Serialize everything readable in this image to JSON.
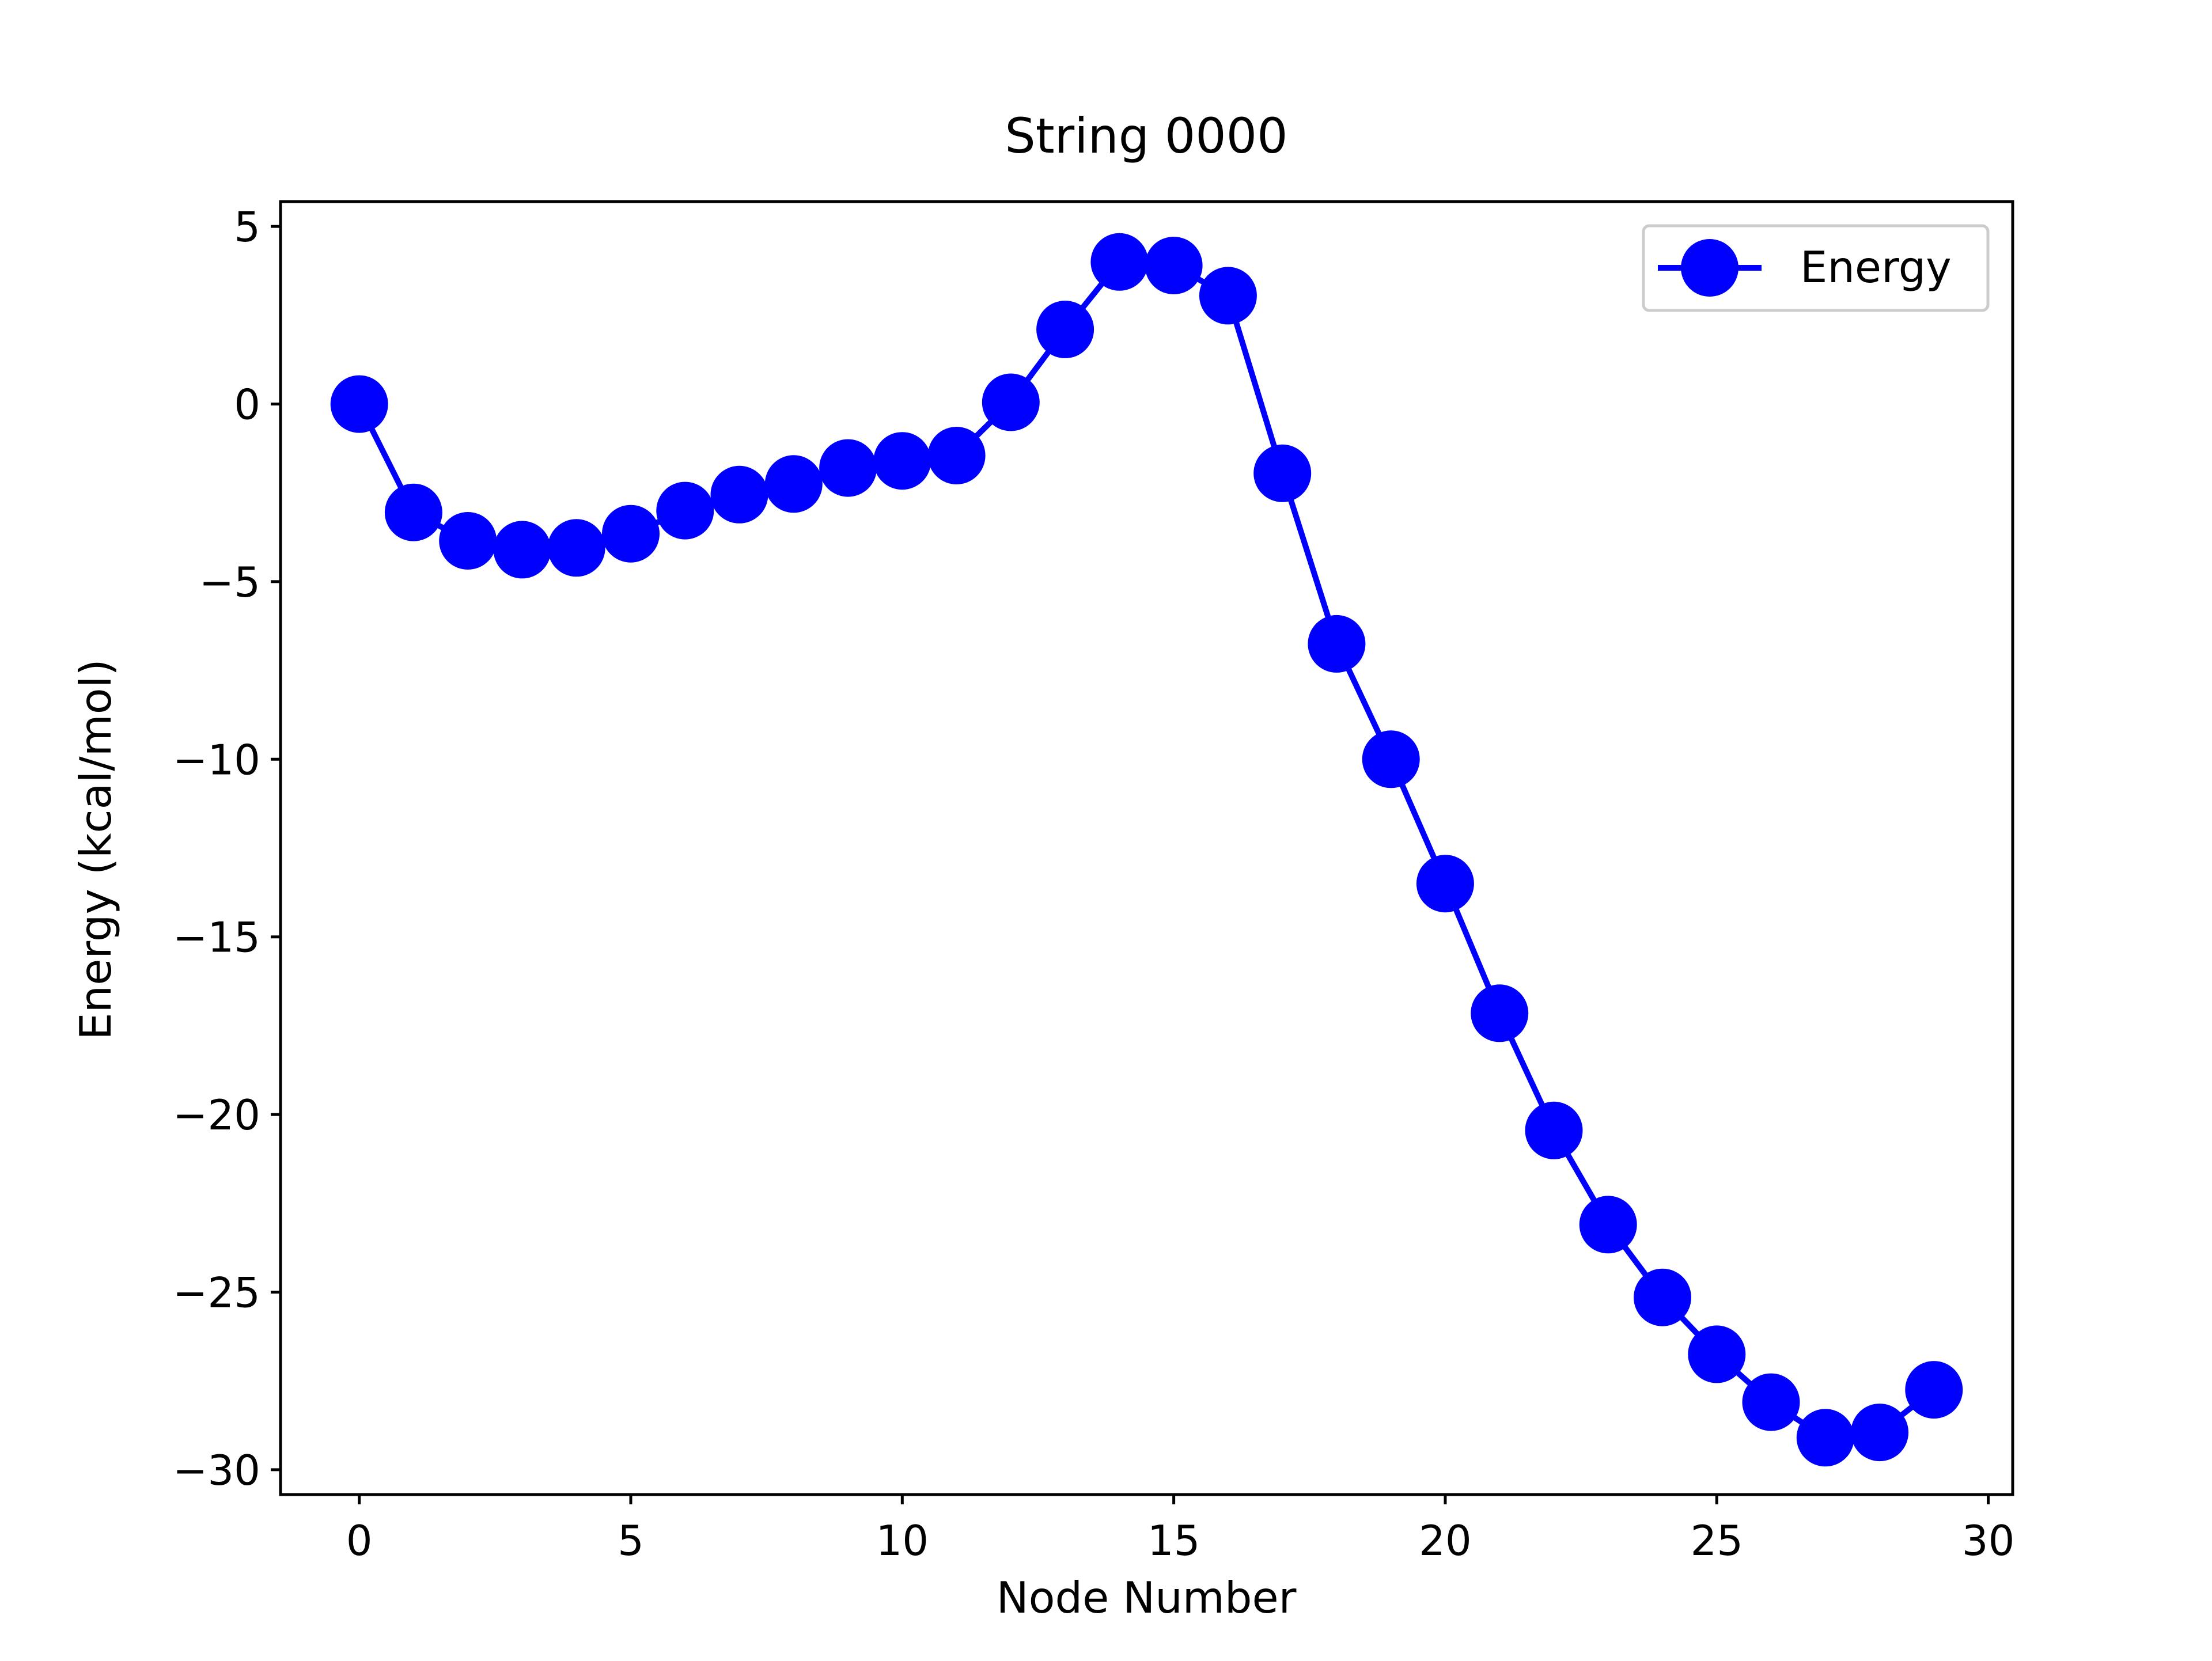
{
  "chart_data": {
    "type": "line",
    "title": "String 0000",
    "xlabel": "Node Number",
    "ylabel": "Energy (kcal/mol)",
    "xlim": [
      -1.45,
      30.45
    ],
    "ylim": [
      -30.7,
      5.7
    ],
    "x_ticks": [
      0,
      5,
      10,
      15,
      20,
      25,
      30
    ],
    "x_tick_labels": [
      "0",
      "5",
      "10",
      "15",
      "20",
      "25",
      "30"
    ],
    "y_ticks": [
      5,
      0,
      -5,
      -10,
      -15,
      -20,
      -25,
      -30
    ],
    "y_tick_labels": [
      "5",
      "0",
      "−5",
      "−10",
      "−15",
      "−20",
      "−25",
      "−30"
    ],
    "grid": false,
    "legend": {
      "position": "top-right",
      "entries": [
        "Energy"
      ]
    },
    "x": [
      0,
      1,
      2,
      3,
      4,
      5,
      6,
      7,
      8,
      9,
      10,
      11,
      12,
      13,
      14,
      15,
      16,
      17,
      18,
      19,
      20,
      21,
      22,
      23,
      24,
      25,
      26,
      27,
      28,
      29
    ],
    "series": [
      {
        "name": "Energy",
        "color": "#0000ff",
        "marker": "circle",
        "values": [
          0.0,
          -3.05,
          -3.85,
          -4.1,
          -4.05,
          -3.65,
          -3.0,
          -2.55,
          -2.25,
          -1.8,
          -1.6,
          -1.45,
          0.05,
          2.1,
          4.0,
          3.9,
          3.05,
          -1.95,
          -6.75,
          -10.0,
          -13.5,
          -17.15,
          -20.45,
          -23.1,
          -25.15,
          -26.75,
          -28.1,
          -29.1,
          -28.95,
          -27.75
        ]
      }
    ]
  }
}
